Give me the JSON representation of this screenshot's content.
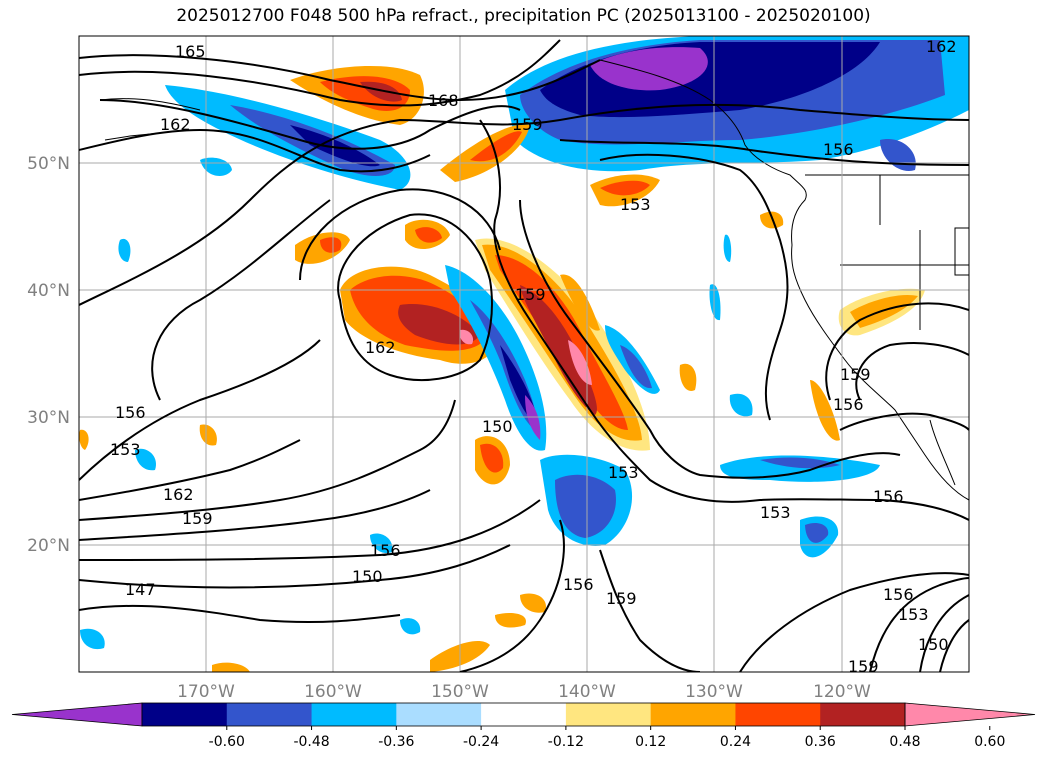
{
  "title": "2025012700 F048 500 hPa refract., precipitation PC (2025013100 - 2025020100)",
  "map": {
    "region": "North Pacific / West coast of North America",
    "lon_range": [
      -180,
      -110
    ],
    "lat_range": [
      10,
      60
    ],
    "lat_ticks": [
      {
        "value": 50,
        "label": "50°N"
      },
      {
        "value": 40,
        "label": "40°N"
      },
      {
        "value": 30,
        "label": "30°N"
      },
      {
        "value": 20,
        "label": "20°N"
      }
    ],
    "lon_ticks": [
      {
        "value": -170,
        "label": "170°W"
      },
      {
        "value": -160,
        "label": "160°W"
      },
      {
        "value": -150,
        "label": "150°W"
      },
      {
        "value": -140,
        "label": "140°W"
      },
      {
        "value": -130,
        "label": "130°W"
      },
      {
        "value": -120,
        "label": "120°W"
      }
    ],
    "grid": true,
    "contour_labels": [
      "165",
      "162",
      "168",
      "159",
      "156",
      "153",
      "162",
      "159",
      "156",
      "153",
      "150",
      "147",
      "162",
      "159",
      "150",
      "153",
      "156",
      "159",
      "156",
      "153",
      "156",
      "156",
      "159",
      "153",
      "150",
      "159",
      "162",
      "156"
    ]
  },
  "colorbar": {
    "levels": [
      "-0.60",
      "-0.48",
      "-0.36",
      "-0.24",
      "-0.12",
      "0.12",
      "0.24",
      "0.36",
      "0.48",
      "0.60"
    ],
    "colors": [
      "#9933cc",
      "#000088",
      "#3355cc",
      "#00bbff",
      "#aaddff",
      "#ffffff",
      "#ffe680",
      "#ffa500",
      "#ff4500",
      "#b22222",
      "#ff88aa"
    ],
    "extend": "both"
  }
}
